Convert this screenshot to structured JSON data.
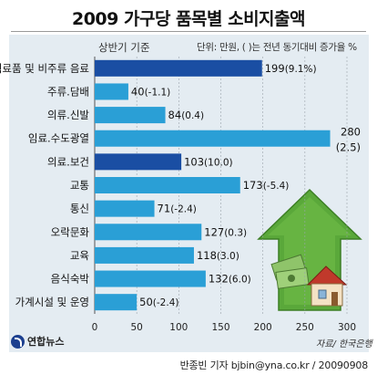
{
  "title": "2009 가구당 품목별 소비지출액",
  "subtitle": "상반기 기준",
  "unit_note": "단위: 만원, ( )는 전년 동기대비 증가율 %",
  "source": "자료/ 한국은행",
  "logo_text": "연합뉴스",
  "byline": "반종빈 기자 bjbin@yna.co.kr / 20090908",
  "colors": {
    "bar": "#2a9fd6",
    "bar_dark": "#1a4ea3",
    "panel": "#e4ecf2",
    "arrow": "#5aa83a"
  },
  "chart_data": {
    "type": "bar",
    "orientation": "horizontal",
    "categories": [
      "식료품 및 비주류 음료",
      "주류.담배",
      "의류.신발",
      "임료.수도광열",
      "의료.보건",
      "교통",
      "통신",
      "오락문화",
      "교육",
      "음식숙박",
      "가계시설 및 운영"
    ],
    "values": [
      199,
      40,
      84,
      280,
      103,
      173,
      71,
      127,
      118,
      132,
      50
    ],
    "change_labels": [
      "(9.1%)",
      "(-1.1)",
      "(0.4)",
      "(2.5)",
      "(10.0)",
      "(-5.4)",
      "(-2.4)",
      "(0.3)",
      "(3.0)",
      "(6.0)",
      "(-2.4)"
    ],
    "highlighted": [
      true,
      false,
      false,
      false,
      true,
      false,
      false,
      false,
      false,
      false,
      false
    ],
    "xlim": [
      0,
      300
    ],
    "xticks": [
      "0",
      "50",
      "100",
      "150",
      "200",
      "250",
      "300"
    ],
    "grid": true
  }
}
